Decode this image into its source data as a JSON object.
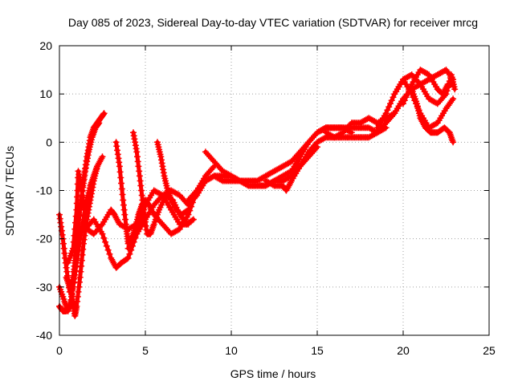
{
  "chart_data": {
    "type": "scatter",
    "title": "Day 085 of 2023, Sidereal Day-to-day VTEC variation (SDTVAR) for receiver mrcg",
    "xlabel": "GPS time / hours",
    "ylabel": "SDTVAR / TECUs",
    "xlim": [
      0,
      25
    ],
    "ylim": [
      -40,
      20
    ],
    "xticks": [
      0,
      5,
      10,
      15,
      20,
      25
    ],
    "yticks": [
      -40,
      -30,
      -20,
      -10,
      0,
      10,
      20
    ],
    "grid": true,
    "marker": "+",
    "color": "#ff0000",
    "series": [
      {
        "x": [
          0.0,
          0.2,
          0.4,
          0.6,
          0.8,
          1.0,
          1.2,
          1.4,
          1.6,
          1.8,
          2.0,
          2.2,
          2.4,
          2.6
        ],
        "y": [
          -15,
          -20,
          -26,
          -31,
          -28,
          -21,
          -14,
          -8,
          -3,
          1,
          3,
          4,
          5,
          6
        ]
      },
      {
        "x": [
          0.0,
          0.3,
          0.5,
          0.7,
          0.9,
          1.1,
          1.3,
          1.5,
          1.7,
          1.9,
          2.1,
          2.3
        ],
        "y": [
          -30,
          -33,
          -35,
          -33,
          -25,
          -17,
          -11,
          -6,
          -2,
          1,
          3,
          4
        ]
      },
      {
        "x": [
          0.0,
          0.2,
          0.4,
          0.6,
          0.8,
          1.0,
          1.2,
          1.4,
          1.6,
          1.8,
          2.0,
          2.2
        ],
        "y": [
          -34,
          -35,
          -35,
          -34,
          -30,
          -25,
          -20,
          -16,
          -12,
          -9,
          -7,
          -5
        ]
      },
      {
        "x": [
          0.4,
          0.6,
          0.8,
          0.9,
          1.0,
          1.2,
          1.4,
          1.6,
          1.8,
          2.0,
          2.2,
          2.5
        ],
        "y": [
          -28,
          -30,
          -33,
          -36,
          -34,
          -28,
          -21,
          -16,
          -12,
          -8,
          -5,
          -3
        ]
      },
      {
        "x": [
          0.5,
          0.8,
          1.0,
          1.1,
          1.3,
          1.6,
          2.0,
          2.5,
          3.0,
          3.2,
          3.5,
          4.0,
          4.5,
          5.0
        ],
        "y": [
          -25,
          -22,
          -14,
          -6,
          -10,
          -18,
          -19,
          -17,
          -14,
          -15,
          -17,
          -18,
          -17,
          -15
        ]
      },
      {
        "x": [
          1.5,
          2.0,
          2.5,
          3.0,
          3.3,
          3.6,
          4.0,
          4.5,
          5.0,
          5.5,
          6.0,
          6.5,
          7.0,
          7.5
        ],
        "y": [
          -18,
          -16,
          -19,
          -24,
          -26,
          -25,
          -24,
          -19,
          -13,
          -10,
          -11,
          -14,
          -17,
          -17
        ]
      },
      {
        "x": [
          3.3,
          3.5,
          3.7,
          3.9,
          4.0,
          4.2,
          4.4,
          4.6,
          4.8,
          5.0,
          5.2,
          5.5,
          6.0,
          6.5,
          7.0,
          7.5,
          8.0,
          8.5,
          9.0
        ],
        "y": [
          0,
          -5,
          -12,
          -18,
          -21,
          -20,
          -18,
          -15,
          -13,
          -12,
          -13,
          -15,
          -17,
          -19,
          -18,
          -15,
          -10,
          -7,
          -5
        ]
      },
      {
        "x": [
          4.3,
          4.5,
          4.7,
          4.9,
          5.1,
          5.3,
          5.5,
          5.8,
          6.2,
          6.6,
          7.0,
          7.4,
          7.8
        ],
        "y": [
          2,
          -2,
          -8,
          -14,
          -19,
          -19,
          -17,
          -14,
          -11,
          -12,
          -15,
          -17,
          -16
        ]
      },
      {
        "x": [
          5.7,
          5.9,
          6.1,
          6.3,
          6.5,
          6.8,
          7.1,
          7.5
        ],
        "y": [
          0,
          -3,
          -7,
          -10,
          -12,
          -14,
          -15,
          -14
        ]
      },
      {
        "x": [
          4.0,
          4.5,
          5.0,
          5.5,
          6.0,
          6.5,
          7.0,
          7.5,
          8.0,
          8.5,
          9.0,
          9.5,
          10.0,
          10.5,
          11.0,
          11.5,
          12.0,
          12.5,
          13.0,
          13.5,
          14.0
        ],
        "y": [
          -22,
          -19,
          -16,
          -13,
          -11,
          -10,
          -11,
          -13,
          -11,
          -8,
          -7,
          -8,
          -8,
          -8,
          -9,
          -9,
          -9,
          -8,
          -7,
          -6,
          -3
        ]
      },
      {
        "x": [
          8.5,
          9.0,
          9.5,
          10.0,
          10.5,
          11.0,
          11.5,
          12.0,
          12.5,
          13.0,
          13.5,
          14.0,
          14.5,
          15.0,
          15.5,
          16.0,
          16.5,
          17.0
        ],
        "y": [
          -2,
          -4,
          -6,
          -7,
          -8,
          -8,
          -8,
          -7,
          -6,
          -5,
          -4,
          -2,
          0,
          2,
          3,
          3,
          3,
          2
        ]
      },
      {
        "x": [
          7.5,
          8.0,
          8.5,
          9.0,
          9.5,
          10.0,
          10.5,
          11.0,
          11.5,
          12.0,
          12.5,
          13.0,
          13.5,
          14.0,
          14.5,
          15.0
        ],
        "y": [
          -12,
          -10,
          -8,
          -7,
          -7,
          -7,
          -8,
          -9,
          -9,
          -9,
          -8,
          -8,
          -7,
          -5,
          -3,
          -1
        ]
      },
      {
        "x": [
          12.0,
          12.5,
          13.0,
          13.2,
          13.5,
          14.0,
          14.5,
          15.0,
          15.5,
          16.0,
          16.5,
          17.0,
          17.5,
          18.0,
          18.5,
          19.0,
          19.5
        ],
        "y": [
          -8,
          -9,
          -9,
          -10,
          -8,
          -5,
          -2,
          0,
          1,
          1,
          1,
          1,
          1,
          1,
          2,
          4,
          6
        ]
      },
      {
        "x": [
          13.5,
          14.0,
          14.5,
          15.0,
          15.5,
          16.0,
          16.5,
          17.0,
          17.5,
          18.0,
          18.5,
          19.0
        ],
        "y": [
          -7,
          -3,
          0,
          2,
          3,
          3,
          3,
          3,
          3,
          3,
          2,
          3
        ]
      },
      {
        "x": [
          15.5,
          16.0,
          16.5,
          17.0,
          17.5,
          18.0,
          18.5,
          19.0,
          19.5,
          20.0,
          20.5,
          21.0,
          21.5,
          22.0,
          22.5,
          22.9
        ],
        "y": [
          2,
          1,
          2,
          4,
          4,
          5,
          4,
          5,
          6,
          9,
          11,
          12,
          13,
          14,
          15,
          13
        ]
      },
      {
        "x": [
          18.5,
          19.0,
          19.5,
          20.0,
          20.5,
          21.0,
          21.5,
          22.0,
          22.5,
          22.8,
          23.0
        ],
        "y": [
          3,
          6,
          10,
          13,
          14,
          12,
          9,
          8,
          10,
          14,
          11
        ]
      },
      {
        "x": [
          19.5,
          20.0,
          20.5,
          21.0,
          21.5,
          22.0,
          22.5,
          22.9
        ],
        "y": [
          10,
          13,
          10,
          6,
          3,
          4,
          7,
          9
        ]
      },
      {
        "x": [
          19.5,
          20.0,
          20.5,
          20.8,
          21.0,
          21.3,
          21.6,
          22.0,
          22.4,
          22.7,
          22.9
        ],
        "y": [
          6,
          9,
          11,
          8,
          5,
          3,
          2,
          2,
          3,
          2,
          0
        ]
      },
      {
        "x": [
          20.0,
          20.5,
          21.0,
          21.5,
          22.0,
          22.3,
          22.6,
          22.9
        ],
        "y": [
          8,
          12,
          15,
          14,
          11,
          10,
          12,
          12
        ]
      }
    ]
  }
}
